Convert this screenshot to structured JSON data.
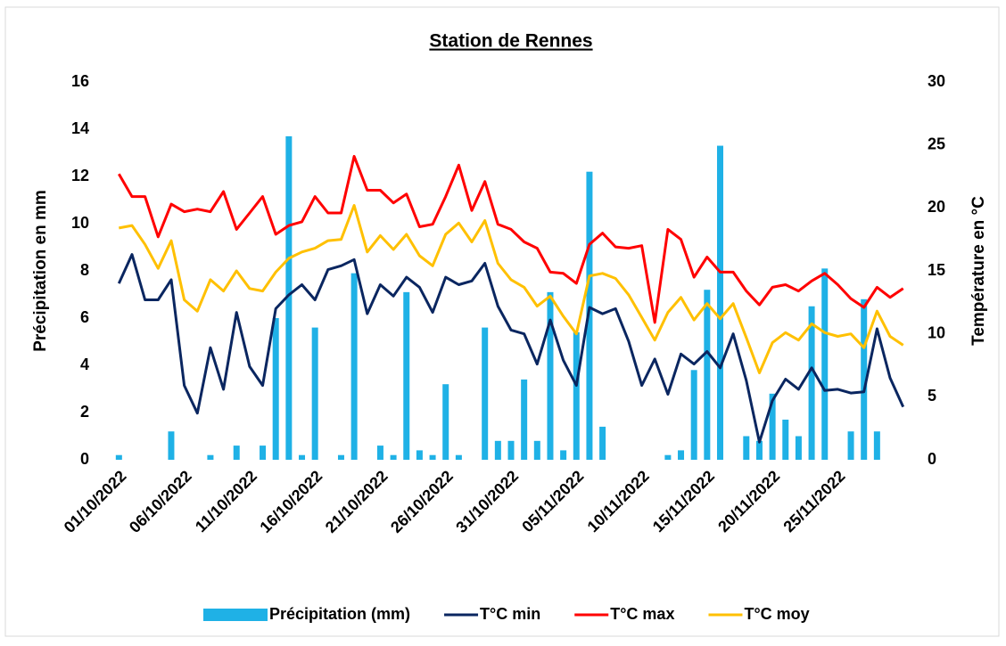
{
  "chart_data": {
    "type": "combo",
    "title": "Station de Rennes",
    "y_label": "Précipitation en mm",
    "y2_label": "Température en °C",
    "categories": [
      "01/10/2022",
      null,
      null,
      null,
      null,
      "06/10/2022",
      null,
      null,
      null,
      null,
      "11/10/2022",
      null,
      null,
      null,
      null,
      "16/10/2022",
      null,
      null,
      null,
      null,
      "21/10/2022",
      null,
      null,
      null,
      null,
      "26/10/2022",
      null,
      null,
      null,
      null,
      "31/10/2022",
      null,
      null,
      null,
      null,
      "05/11/2022",
      null,
      null,
      null,
      null,
      "10/11/2022",
      null,
      null,
      null,
      null,
      "15/11/2022",
      null,
      null,
      null,
      null,
      "20/11/2022",
      null,
      null,
      null,
      null,
      "25/11/2022",
      null,
      null,
      null,
      null,
      null
    ],
    "ylim": [
      0,
      16
    ],
    "yticks": [
      0,
      2,
      4,
      6,
      8,
      10,
      12,
      14,
      16
    ],
    "y2lim": [
      0,
      30
    ],
    "y2ticks": [
      0,
      5,
      10,
      15,
      20,
      25,
      30
    ],
    "grid": false,
    "legend": "bottom",
    "series": [
      {
        "name": "Précipitation (mm)",
        "type": "bar",
        "color": "#1fb1e6",
        "values": [
          0.2,
          0,
          0,
          0,
          1.2,
          0,
          0,
          0.2,
          0,
          0.6,
          0,
          0.6,
          6.0,
          13.7,
          0.2,
          5.6,
          0,
          0.2,
          7.9,
          0,
          0.6,
          0.2,
          7.1,
          0.4,
          0.2,
          3.2,
          0.2,
          0,
          5.6,
          0.8,
          0.8,
          3.4,
          0.8,
          7.1,
          0.4,
          5.4,
          12.2,
          1.4,
          0,
          0,
          0,
          0,
          0.2,
          0.4,
          3.8,
          7.2,
          13.3,
          0,
          1.0,
          0.8,
          2.8,
          1.7,
          1.0,
          6.5,
          8.1,
          0,
          1.2,
          6.8,
          1.2,
          0,
          0
        ]
      },
      {
        "name": "T°C min",
        "type": "line",
        "axis": "y2",
        "color": "#0a2660",
        "values": [
          14.0,
          16.3,
          12.7,
          12.7,
          14.3,
          5.9,
          3.7,
          8.9,
          5.6,
          11.7,
          7.4,
          5.9,
          12.0,
          13.1,
          13.9,
          12.7,
          15.1,
          15.4,
          15.9,
          11.6,
          13.9,
          13.0,
          14.5,
          13.7,
          11.7,
          14.5,
          13.9,
          14.2,
          15.6,
          12.2,
          10.3,
          10.0,
          7.6,
          11.1,
          7.9,
          5.9,
          12.1,
          11.6,
          12.0,
          9.4,
          5.9,
          8.0,
          5.2,
          8.4,
          7.6,
          8.6,
          7.3,
          10.0,
          6.3,
          1.4,
          4.7,
          6.4,
          5.6,
          7.3,
          5.5,
          5.6,
          5.3,
          5.4,
          10.4,
          6.5,
          4.2
        ]
      },
      {
        "name": "T°C max",
        "type": "line",
        "axis": "y2",
        "color": "#ff0000",
        "values": [
          22.7,
          20.9,
          20.9,
          17.7,
          20.3,
          19.7,
          19.9,
          19.7,
          21.3,
          18.3,
          19.6,
          20.9,
          17.9,
          18.6,
          18.9,
          20.9,
          19.6,
          19.6,
          24.1,
          21.4,
          21.4,
          20.4,
          21.1,
          18.5,
          18.7,
          20.9,
          23.4,
          19.8,
          22.1,
          18.7,
          18.3,
          17.3,
          16.8,
          14.9,
          14.8,
          14.0,
          17.1,
          18.0,
          16.9,
          16.8,
          17.0,
          10.9,
          18.3,
          17.5,
          14.5,
          16.1,
          14.9,
          14.9,
          13.4,
          12.3,
          13.7,
          13.9,
          13.4,
          14.2,
          14.8,
          13.9,
          12.8,
          12.1,
          13.7,
          12.9,
          13.6
        ]
      },
      {
        "name": "T°C moy",
        "type": "line",
        "axis": "y2",
        "color": "#ffc000",
        "values": [
          18.4,
          18.6,
          17.1,
          15.2,
          17.4,
          12.7,
          11.8,
          14.3,
          13.4,
          15.0,
          13.6,
          13.4,
          14.9,
          16.0,
          16.5,
          16.8,
          17.4,
          17.5,
          20.2,
          16.5,
          17.8,
          16.7,
          17.9,
          16.2,
          15.4,
          17.9,
          18.8,
          17.3,
          19.0,
          15.6,
          14.3,
          13.7,
          12.2,
          13.0,
          11.4,
          10.0,
          14.6,
          14.8,
          14.4,
          13.1,
          11.3,
          9.5,
          11.7,
          12.9,
          11.1,
          12.4,
          11.2,
          12.4,
          9.7,
          6.9,
          9.3,
          10.1,
          9.5,
          10.8,
          10.1,
          9.8,
          10.0,
          8.9,
          11.8,
          9.8,
          9.1
        ]
      }
    ]
  }
}
